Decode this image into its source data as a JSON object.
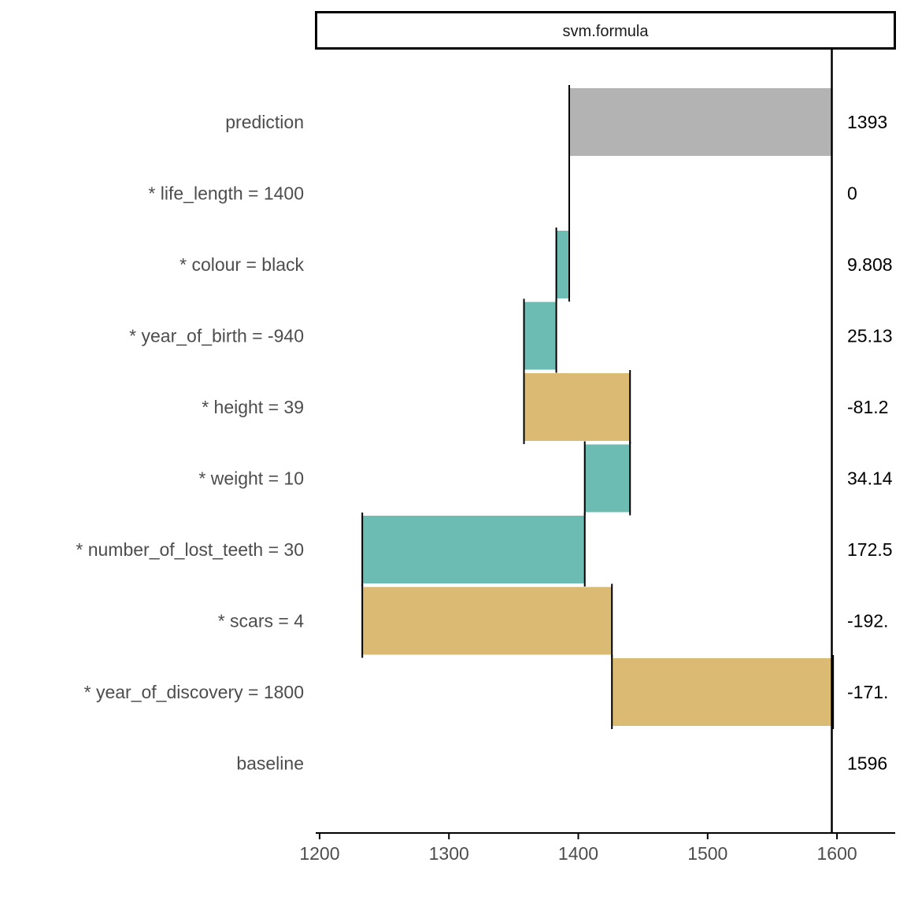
{
  "chart_data": {
    "type": "bar",
    "subtype": "waterfall",
    "panel_title": "svm.formula",
    "baseline_value": 1596,
    "x_ticks": [
      1200,
      1300,
      1400,
      1500,
      1600
    ],
    "xlim": [
      1197,
      1645
    ],
    "rows": [
      {
        "label": "prediction",
        "start": 1393,
        "end": 1596,
        "value_label": "1393",
        "kind": "prediction"
      },
      {
        "label": "* life_length = 1400",
        "start": 1393,
        "end": 1393,
        "value_label": "0",
        "kind": "zero"
      },
      {
        "label": "* colour = black",
        "start": 1383,
        "end": 1393,
        "value_label": "9.808",
        "kind": "positive"
      },
      {
        "label": "* year_of_birth = -940",
        "start": 1358,
        "end": 1383,
        "value_label": "25.13",
        "kind": "positive"
      },
      {
        "label": "* height = 39",
        "start": 1358,
        "end": 1440,
        "value_label": "-81.2",
        "kind": "negative"
      },
      {
        "label": "* weight = 10",
        "start": 1405,
        "end": 1440,
        "value_label": "34.14",
        "kind": "positive"
      },
      {
        "label": "* number_of_lost_teeth = 30",
        "start": 1233,
        "end": 1405,
        "value_label": "172.5",
        "kind": "positive"
      },
      {
        "label": "* scars = 4",
        "start": 1233,
        "end": 1426,
        "value_label": "-192.",
        "kind": "negative"
      },
      {
        "label": "* year_of_discovery = 1800",
        "start": 1426,
        "end": 1597,
        "value_label": "-171.",
        "kind": "negative"
      },
      {
        "label": "baseline",
        "start": 1596,
        "end": 1596,
        "value_label": "1596",
        "kind": "baseline"
      }
    ],
    "colors": {
      "positive": "#6cbcb3",
      "negative": "#dbbb74",
      "prediction": "#b3b3b3"
    },
    "legend": "none",
    "grid": false
  }
}
